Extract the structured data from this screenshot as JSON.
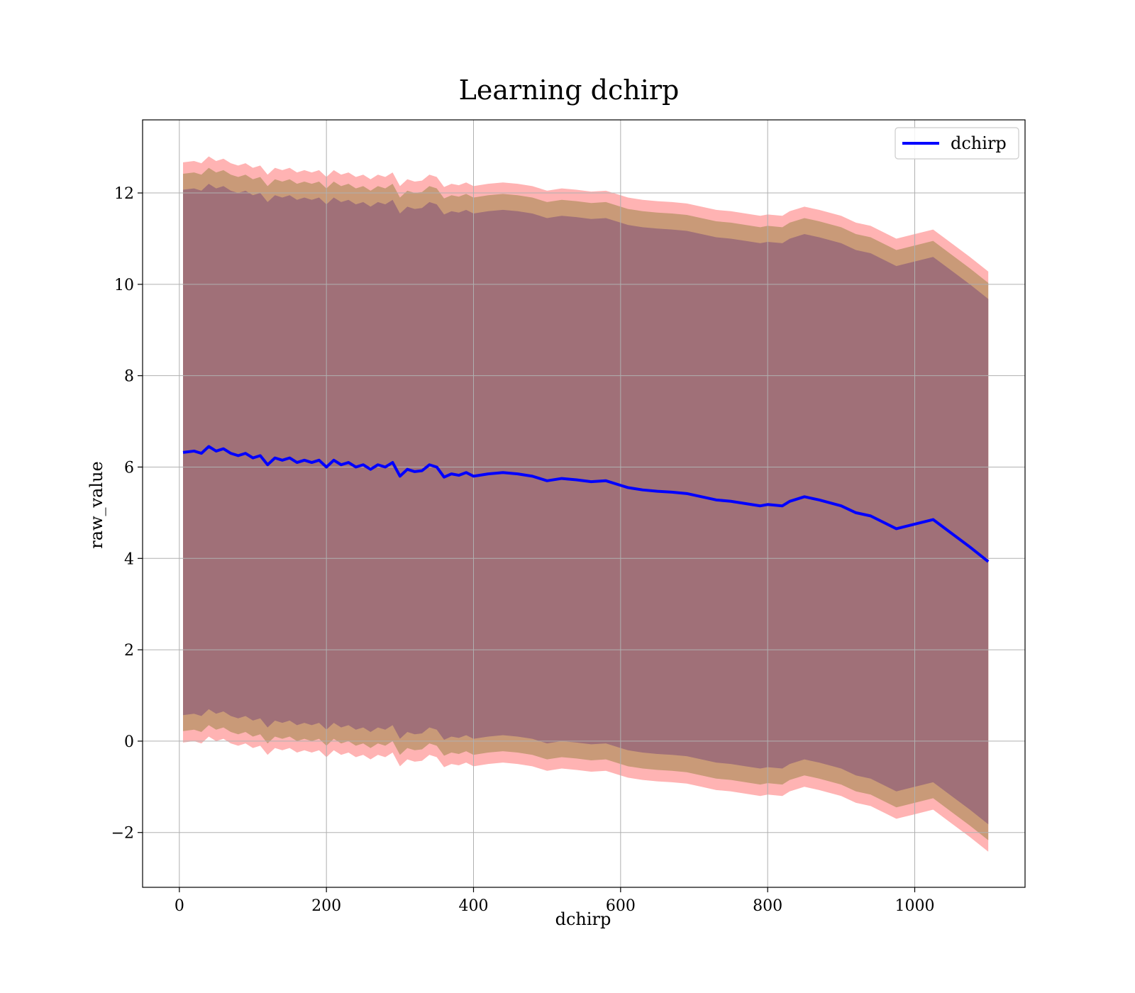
{
  "chart_data": {
    "type": "line",
    "title": "Learning dchirp",
    "xlabel": "dchirp",
    "ylabel": "raw_value",
    "xlim": [
      -50,
      1150
    ],
    "ylim": [
      -3.2,
      13.6
    ],
    "xticks": [
      0,
      200,
      400,
      600,
      800,
      1000
    ],
    "yticks": [
      -2,
      0,
      2,
      4,
      6,
      8,
      10,
      12
    ],
    "grid": true,
    "legend": {
      "placement": "top-right",
      "entries": [
        "dchirp"
      ]
    },
    "colors": {
      "line": "#0000ff",
      "band_outer": "#ffb3b3",
      "band_middle": "#c99a78",
      "band_inner": "#a07078"
    },
    "series": [
      {
        "name": "dchirp",
        "x": [
          5,
          20,
          30,
          40,
          50,
          60,
          70,
          80,
          90,
          100,
          110,
          120,
          130,
          140,
          150,
          160,
          170,
          180,
          190,
          200,
          210,
          220,
          230,
          240,
          250,
          260,
          270,
          280,
          290,
          300,
          310,
          320,
          330,
          340,
          350,
          360,
          370,
          380,
          390,
          400,
          420,
          440,
          460,
          480,
          500,
          520,
          540,
          560,
          580,
          600,
          610,
          630,
          650,
          670,
          690,
          710,
          730,
          750,
          770,
          790,
          800,
          820,
          830,
          850,
          870,
          900,
          920,
          940,
          975,
          1000,
          1025,
          1050,
          1075,
          1100
        ],
        "values": [
          6.32,
          6.35,
          6.3,
          6.45,
          6.35,
          6.4,
          6.3,
          6.25,
          6.3,
          6.2,
          6.25,
          6.05,
          6.2,
          6.15,
          6.2,
          6.1,
          6.15,
          6.1,
          6.15,
          6.0,
          6.15,
          6.05,
          6.1,
          6.0,
          6.05,
          5.95,
          6.05,
          6.0,
          6.1,
          5.8,
          5.95,
          5.9,
          5.92,
          6.05,
          6.0,
          5.78,
          5.85,
          5.82,
          5.88,
          5.8,
          5.85,
          5.88,
          5.85,
          5.8,
          5.7,
          5.75,
          5.72,
          5.68,
          5.7,
          5.6,
          5.55,
          5.5,
          5.47,
          5.45,
          5.42,
          5.35,
          5.28,
          5.25,
          5.2,
          5.15,
          5.18,
          5.15,
          5.25,
          5.35,
          5.28,
          5.15,
          5.0,
          4.93,
          4.65,
          4.75,
          4.85,
          4.55,
          4.25,
          3.93
        ]
      }
    ],
    "bands": [
      {
        "offset_upper": 6.35,
        "offset_lower": 6.35
      },
      {
        "offset_upper": 6.1,
        "offset_lower": 6.1
      },
      {
        "offset_upper": 5.75,
        "offset_lower": 5.75
      }
    ]
  }
}
